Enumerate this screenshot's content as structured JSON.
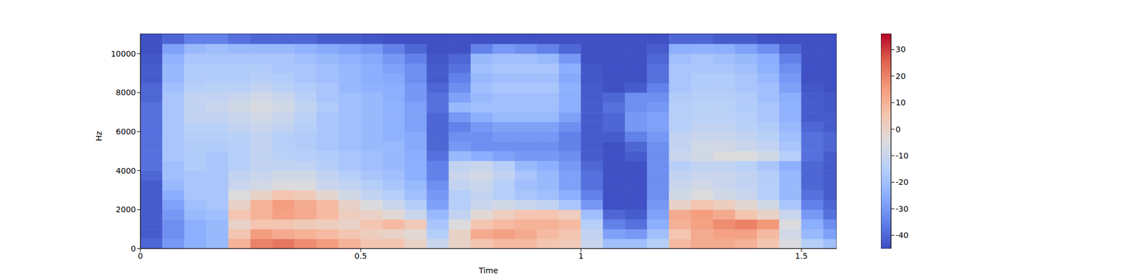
{
  "chart_data": {
    "type": "heatmap",
    "xlabel": "Time",
    "ylabel": "Hz",
    "xlim": [
      0,
      1.58
    ],
    "ylim": [
      0,
      11025
    ],
    "xticks": [
      0,
      0.5,
      1,
      1.5
    ],
    "yticks": [
      0,
      2000,
      4000,
      6000,
      8000,
      10000
    ],
    "grid": false,
    "x_bins": [
      0,
      0.05,
      0.1,
      0.15,
      0.2,
      0.25,
      0.3,
      0.35,
      0.4,
      0.45,
      0.5,
      0.55,
      0.6,
      0.65,
      0.7,
      0.75,
      0.8,
      0.85,
      0.9,
      0.95,
      1,
      1.05,
      1.1,
      1.15,
      1.2,
      1.25,
      1.3,
      1.35,
      1.4,
      1.45,
      1.5,
      1.55,
      1.58
    ],
    "y_bins": [
      0,
      500,
      1000,
      1500,
      2000,
      2500,
      3000,
      3500,
      4000,
      4500,
      5000,
      5500,
      6000,
      6500,
      7000,
      7500,
      8000,
      8500,
      9000,
      9500,
      10000,
      10500,
      11025
    ],
    "z": [
      [
        -40,
        -30,
        -25,
        -22,
        10,
        20,
        22,
        18,
        15,
        10,
        5,
        5,
        0,
        -10,
        0,
        5,
        8,
        8,
        5,
        3,
        -10,
        -20,
        -20,
        -15,
        8,
        12,
        12,
        10,
        5,
        -5,
        -15,
        -20
      ],
      [
        -42,
        -32,
        -25,
        -22,
        5,
        15,
        12,
        10,
        8,
        5,
        2,
        0,
        -3,
        -15,
        0,
        12,
        14,
        12,
        8,
        5,
        -12,
        -28,
        -30,
        -20,
        5,
        12,
        14,
        14,
        8,
        -8,
        -22,
        -28
      ],
      [
        -42,
        -32,
        -25,
        -22,
        0,
        5,
        5,
        3,
        2,
        0,
        5,
        8,
        3,
        -18,
        -5,
        5,
        8,
        10,
        10,
        8,
        -15,
        -35,
        -38,
        -25,
        10,
        14,
        18,
        20,
        16,
        -5,
        -25,
        -32
      ],
      [
        -42,
        -30,
        -22,
        -20,
        5,
        10,
        14,
        12,
        8,
        2,
        0,
        -3,
        -10,
        -22,
        -12,
        -3,
        2,
        5,
        5,
        2,
        -20,
        -40,
        -42,
        -28,
        12,
        15,
        12,
        5,
        0,
        -10,
        -30,
        -38
      ],
      [
        -42,
        -28,
        -20,
        -18,
        0,
        10,
        15,
        12,
        8,
        0,
        -5,
        -10,
        -15,
        -28,
        -15,
        -10,
        -8,
        -10,
        -12,
        -18,
        -30,
        -44,
        -44,
        -30,
        0,
        5,
        2,
        -2,
        -8,
        -18,
        -35,
        -40
      ],
      [
        -42,
        -25,
        -18,
        -18,
        -5,
        0,
        5,
        3,
        -2,
        -8,
        -12,
        -15,
        -20,
        -30,
        -15,
        -12,
        -15,
        -18,
        -20,
        -25,
        -35,
        -44,
        -44,
        -32,
        -8,
        -5,
        -8,
        -10,
        -15,
        -22,
        -38,
        -42
      ],
      [
        -42,
        -22,
        -18,
        -18,
        -10,
        -8,
        -5,
        -5,
        -10,
        -12,
        -15,
        -18,
        -22,
        -32,
        -12,
        -10,
        -15,
        -20,
        -22,
        -28,
        -38,
        -44,
        -44,
        -32,
        -10,
        -8,
        -10,
        -12,
        -15,
        -22,
        -40,
        -42
      ],
      [
        -40,
        -20,
        -18,
        -18,
        -12,
        -10,
        -8,
        -8,
        -12,
        -15,
        -18,
        -20,
        -25,
        -35,
        -10,
        -8,
        -12,
        -18,
        -22,
        -28,
        -38,
        -44,
        -44,
        -32,
        -12,
        -10,
        -10,
        -12,
        -15,
        -22,
        -40,
        -42
      ],
      [
        -38,
        -20,
        -16,
        -18,
        -15,
        -12,
        -12,
        -12,
        -15,
        -18,
        -20,
        -22,
        -25,
        -35,
        -12,
        -10,
        -15,
        -22,
        -25,
        -30,
        -40,
        -44,
        -44,
        -32,
        -15,
        -12,
        -12,
        -14,
        -18,
        -25,
        -40,
        -42
      ],
      [
        -38,
        -18,
        -16,
        -18,
        -15,
        -12,
        -14,
        -15,
        -16,
        -18,
        -20,
        -22,
        -25,
        -38,
        -22,
        -25,
        -28,
        -30,
        -30,
        -32,
        -42,
        -44,
        -42,
        -32,
        -10,
        -8,
        -5,
        -5,
        -8,
        -15,
        -38,
        -42
      ],
      [
        -38,
        -18,
        -16,
        -16,
        -15,
        -12,
        -15,
        -16,
        -18,
        -20,
        -22,
        -22,
        -26,
        -40,
        -30,
        -32,
        -32,
        -32,
        -32,
        -35,
        -42,
        -44,
        -40,
        -32,
        -12,
        -8,
        -8,
        -10,
        -12,
        -18,
        -38,
        -40
      ],
      [
        -38,
        -18,
        -15,
        -15,
        -14,
        -12,
        -15,
        -16,
        -18,
        -20,
        -22,
        -24,
        -26,
        -40,
        -32,
        -32,
        -30,
        -30,
        -30,
        -35,
        -42,
        -42,
        -35,
        -30,
        -12,
        -10,
        -10,
        -12,
        -14,
        -20,
        -38,
        -40
      ],
      [
        -38,
        -18,
        -14,
        -14,
        -12,
        -10,
        -12,
        -15,
        -18,
        -20,
        -22,
        -24,
        -28,
        -40,
        -35,
        -30,
        -28,
        -28,
        -28,
        -32,
        -42,
        -40,
        -30,
        -28,
        -15,
        -12,
        -12,
        -14,
        -16,
        -22,
        -40,
        -42
      ],
      [
        -38,
        -18,
        -12,
        -12,
        -10,
        -8,
        -10,
        -14,
        -18,
        -20,
        -22,
        -24,
        -28,
        -40,
        -30,
        -25,
        -22,
        -22,
        -22,
        -28,
        -42,
        -40,
        -30,
        -28,
        -15,
        -14,
        -14,
        -15,
        -18,
        -24,
        -42,
        -42
      ],
      [
        -38,
        -18,
        -12,
        -10,
        -8,
        -6,
        -8,
        -12,
        -16,
        -20,
        -22,
        -24,
        -28,
        -38,
        -22,
        -20,
        -20,
        -20,
        -20,
        -25,
        -42,
        -38,
        -32,
        -30,
        -15,
        -14,
        -14,
        -16,
        -18,
        -24,
        -42,
        -43
      ],
      [
        -40,
        -18,
        -12,
        -12,
        -10,
        -8,
        -10,
        -14,
        -18,
        -20,
        -22,
        -25,
        -30,
        -38,
        -28,
        -22,
        -20,
        -20,
        -20,
        -25,
        -42,
        -40,
        -32,
        -32,
        -16,
        -15,
        -15,
        -16,
        -20,
        -25,
        -42,
        -43
      ],
      [
        -40,
        -20,
        -15,
        -14,
        -14,
        -12,
        -14,
        -16,
        -18,
        -22,
        -24,
        -25,
        -30,
        -40,
        -32,
        -20,
        -18,
        -18,
        -18,
        -24,
        -42,
        -44,
        -42,
        -35,
        -18,
        -16,
        -16,
        -18,
        -20,
        -28,
        -43,
        -44
      ],
      [
        -42,
        -22,
        -16,
        -16,
        -16,
        -15,
        -16,
        -18,
        -20,
        -22,
        -25,
        -26,
        -32,
        -42,
        -35,
        -22,
        -20,
        -20,
        -20,
        -26,
        -43,
        -44,
        -44,
        -38,
        -18,
        -16,
        -16,
        -18,
        -22,
        -30,
        -44,
        -44
      ],
      [
        -42,
        -22,
        -16,
        -16,
        -16,
        -16,
        -18,
        -18,
        -20,
        -22,
        -25,
        -28,
        -32,
        -42,
        -38,
        -20,
        -18,
        -18,
        -18,
        -25,
        -43,
        -44,
        -44,
        -38,
        -18,
        -18,
        -18,
        -20,
        -24,
        -32,
        -44,
        -44
      ],
      [
        -43,
        -24,
        -18,
        -18,
        -18,
        -18,
        -18,
        -20,
        -22,
        -24,
        -26,
        -30,
        -35,
        -43,
        -40,
        -22,
        -20,
        -20,
        -22,
        -30,
        -44,
        -44,
        -44,
        -40,
        -20,
        -18,
        -20,
        -22,
        -25,
        -35,
        -44,
        -44
      ],
      [
        -44,
        -28,
        -22,
        -20,
        -22,
        -22,
        -22,
        -24,
        -26,
        -28,
        -30,
        -35,
        -40,
        -44,
        -44,
        -35,
        -30,
        -32,
        -35,
        -40,
        -44,
        -44,
        -44,
        -42,
        -25,
        -24,
        -25,
        -28,
        -32,
        -40,
        -44,
        -44
      ],
      [
        -44,
        -40,
        -35,
        -35,
        -38,
        -40,
        -40,
        -40,
        -42,
        -42,
        -43,
        -44,
        -44,
        -44,
        -44,
        -44,
        -44,
        -44,
        -44,
        -44,
        -44,
        -44,
        -44,
        -44,
        -40,
        -40,
        -42,
        -42,
        -44,
        -44,
        -44,
        -44
      ]
    ],
    "colorbar": {
      "range": [
        -45,
        36
      ],
      "ticks": [
        -40,
        -30,
        -20,
        -10,
        0,
        10,
        20,
        30
      ]
    }
  }
}
